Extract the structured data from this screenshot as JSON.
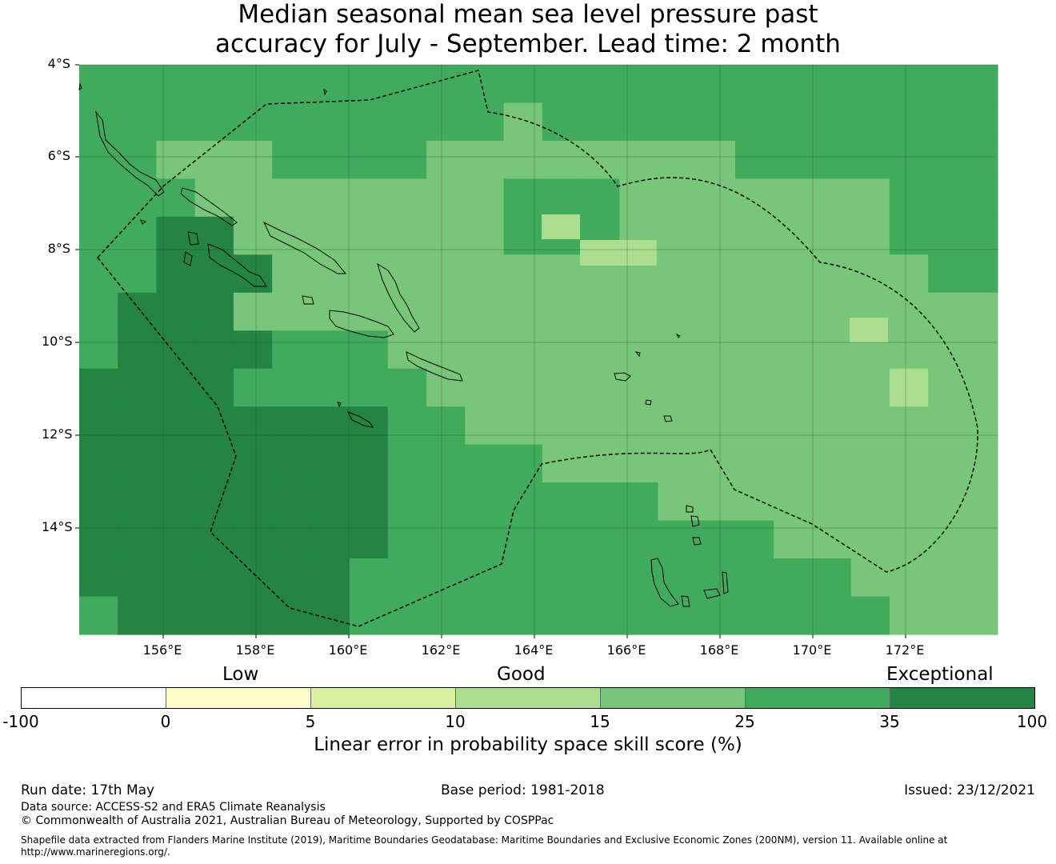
{
  "title": {
    "line1": "Median seasonal mean sea level pressure past",
    "line2": "accuracy for July - September. Lead time: 2 month"
  },
  "map": {
    "lat_range": [
      -16.5,
      -4
    ],
    "lon_range": [
      154.2,
      174
    ],
    "lat_labels": [
      "4°S",
      "6°S",
      "8°S",
      "10°S",
      "12°S",
      "14°S"
    ],
    "lon_labels": [
      "156°E",
      "158°E",
      "160°E",
      "162°E",
      "164°E",
      "166°E",
      "168°E",
      "170°E",
      "172°E"
    ],
    "colors": {
      "c1": "#ffffcc",
      "c2": "#d9f0a3",
      "c3": "#addd8e",
      "c4": "#78c679",
      "c5": "#41ab5d",
      "c6": "#238443"
    }
  },
  "legend": {
    "categories": [
      "Low",
      "Good",
      "Exceptional"
    ],
    "segment_colors": [
      "#ffffff",
      "#ffffcc",
      "#d9f0a3",
      "#addd8e",
      "#78c679",
      "#41ab5d",
      "#238443"
    ],
    "ticks": [
      "-100",
      "0",
      "5",
      "10",
      "15",
      "25",
      "35",
      "100"
    ],
    "caption": "Linear error in probability space skill score (%)"
  },
  "footer": {
    "run_date": "Run date: 17th May",
    "base_period": "Base period: 1981-2018",
    "issued": "Issued: 23/12/2021",
    "data_source": "Data source: ACCESS-S2 and ERA5 Climate Reanalysis",
    "copyright": "© Commonwealth of Australia 2021, Australian Bureau of Meteorology, Supported by COSPPac",
    "shapefile_line1": "Shapefile data extracted from Flanders Marine Institute (2019), Maritime Boundaries Geodatabase: Maritime Boundaries and Exclusive Economic Zones (200NM), version 11. Available online at",
    "shapefile_line2": "http://www.marineregions.org/."
  }
}
